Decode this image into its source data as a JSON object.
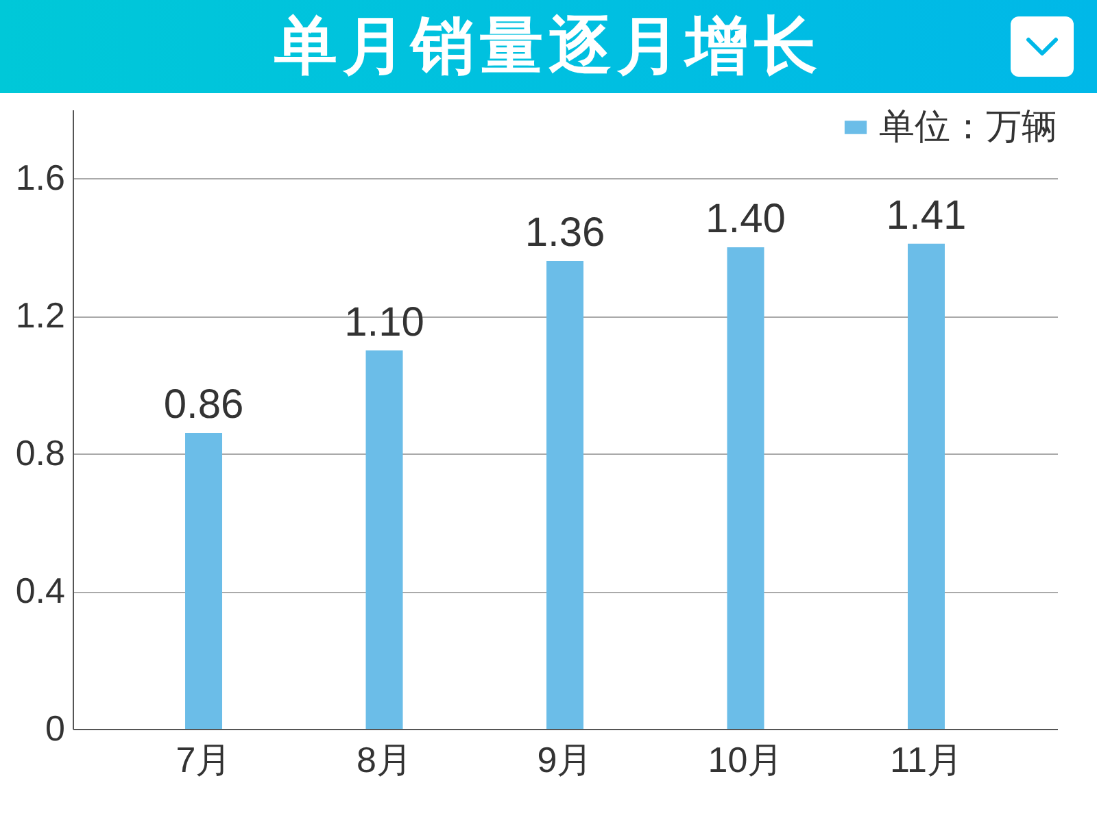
{
  "chart_data": {
    "type": "bar",
    "title": "单月销量逐月增长",
    "categories": [
      "7月",
      "8月",
      "9月",
      "10月",
      "11月"
    ],
    "series": [
      {
        "name": "单位：万辆",
        "color": "#6bbde8",
        "values": [
          0.86,
          1.1,
          1.36,
          1.4,
          1.41
        ],
        "value_labels": [
          "0.86",
          "1.10",
          "1.36",
          "1.40",
          "1.41"
        ]
      }
    ],
    "ylim": [
      0,
      1.8
    ],
    "yticks": [
      0,
      0.4,
      0.8,
      1.2,
      1.6
    ],
    "grid": "y",
    "legend": "top right"
  }
}
